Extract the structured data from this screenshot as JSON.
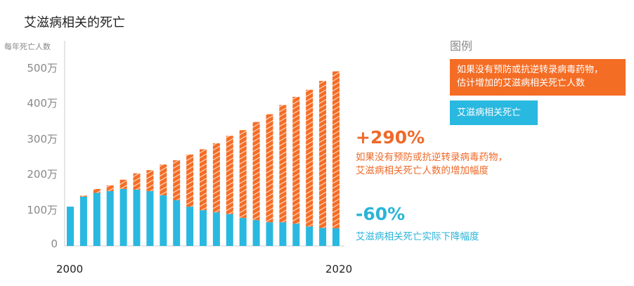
{
  "chart_data": {
    "type": "bar",
    "stacked": true,
    "title": "艾滋病相关的死亡",
    "ylabel": "每年死亡人数",
    "ylim": [
      0,
      5000000
    ],
    "yticks": [
      {
        "value": 0,
        "label": "0"
      },
      {
        "value": 1000000,
        "label": "100万"
      },
      {
        "value": 2000000,
        "label": "200万"
      },
      {
        "value": 3000000,
        "label": "300万"
      },
      {
        "value": 4000000,
        "label": "400万"
      },
      {
        "value": 5000000,
        "label": "500万"
      }
    ],
    "xticks": [
      "2000",
      "2020"
    ],
    "categories": [
      "2000",
      "2001",
      "2002",
      "2003",
      "2004",
      "2005",
      "2006",
      "2007",
      "2008",
      "2009",
      "2010",
      "2011",
      "2012",
      "2013",
      "2014",
      "2015",
      "2016",
      "2017",
      "2018",
      "2019",
      "2020"
    ],
    "series": [
      {
        "name": "艾滋病相关死亡",
        "color": "#29b8e0",
        "values": [
          1070000,
          1350000,
          1460000,
          1510000,
          1570000,
          1550000,
          1510000,
          1390000,
          1250000,
          1070000,
          970000,
          910000,
          860000,
          750000,
          690000,
          630000,
          630000,
          590000,
          510000,
          470000,
          460000
        ]
      },
      {
        "name": "如果没有预防或抗逆转录病毒药物，估计增加的艾滋病相关死亡人数",
        "color": "#f46d25",
        "values": [
          0,
          30000,
          110000,
          160000,
          260000,
          460000,
          590000,
          870000,
          1130000,
          1470000,
          1720000,
          1950000,
          2210000,
          2480000,
          2770000,
          3050000,
          3310000,
          3580000,
          3860000,
          4150000,
          4430000
        ]
      }
    ],
    "legend": {
      "title": "图例",
      "placement": "right"
    },
    "annotations": [
      {
        "value": "+290%",
        "text": "如果没有预防或抗逆转录病毒药物，艾滋病相关死亡人数的增加幅度",
        "color": "#ee6a2a"
      },
      {
        "value": "-60%",
        "text": "艾滋病相关死亡实际下降幅度",
        "color": "#2bb4d9"
      }
    ]
  },
  "legend_orange_lines": [
    "如果没有预防或抗逆转录病毒药物，",
    "估计增加的艾滋病相关死亡人数"
  ],
  "annotation1_lines": [
    "如果没有预防或抗逆转录病毒药物，",
    "艾滋病相关死亡人数的增加幅度"
  ]
}
